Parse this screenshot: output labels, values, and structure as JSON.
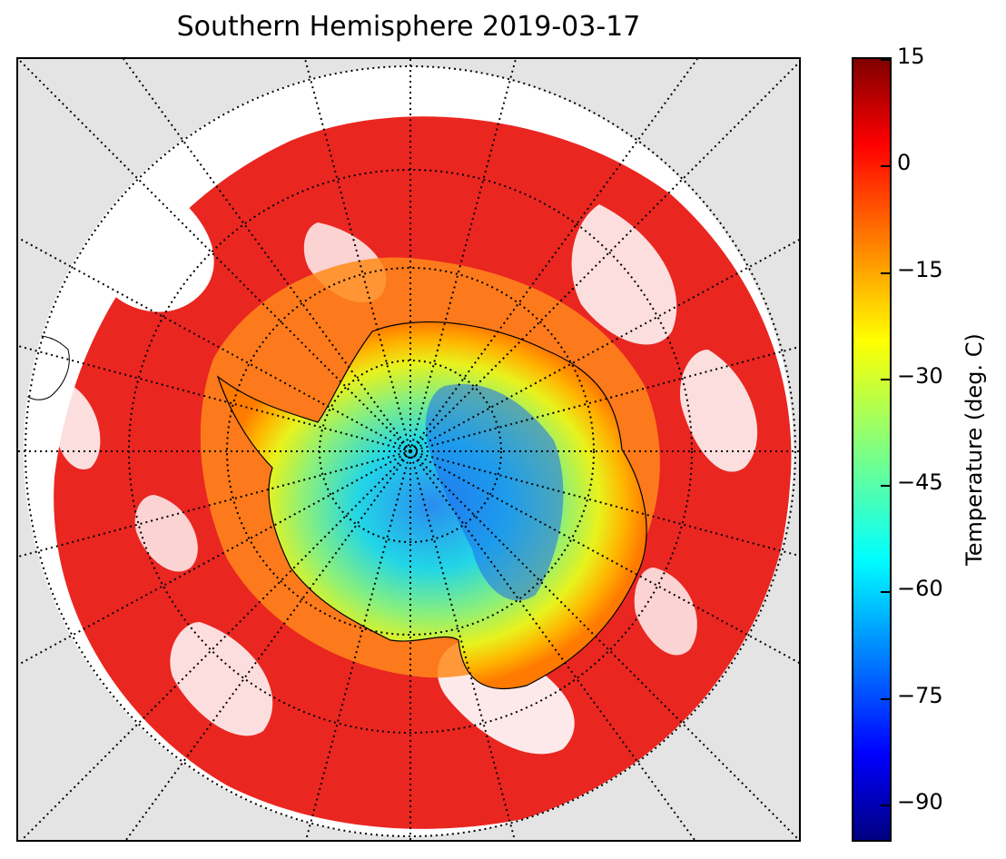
{
  "title": "Southern Hemisphere 2019-03-17",
  "map": {
    "projection": "south polar stereographic",
    "background_color": "#e4e4e4",
    "no_data_color": "#ffffff",
    "coastline_color": "#000000",
    "graticule_style": "dotted black"
  },
  "colorbar": {
    "label": "Temperature (deg. C)",
    "colormap": "jet",
    "range": [
      -95,
      15
    ],
    "ticks": [
      "15",
      "0",
      "−15",
      "−30",
      "−45",
      "−60",
      "−75",
      "−90"
    ],
    "tick_values": [
      15,
      0,
      -15,
      -30,
      -45,
      -60,
      -75,
      -90
    ]
  }
}
